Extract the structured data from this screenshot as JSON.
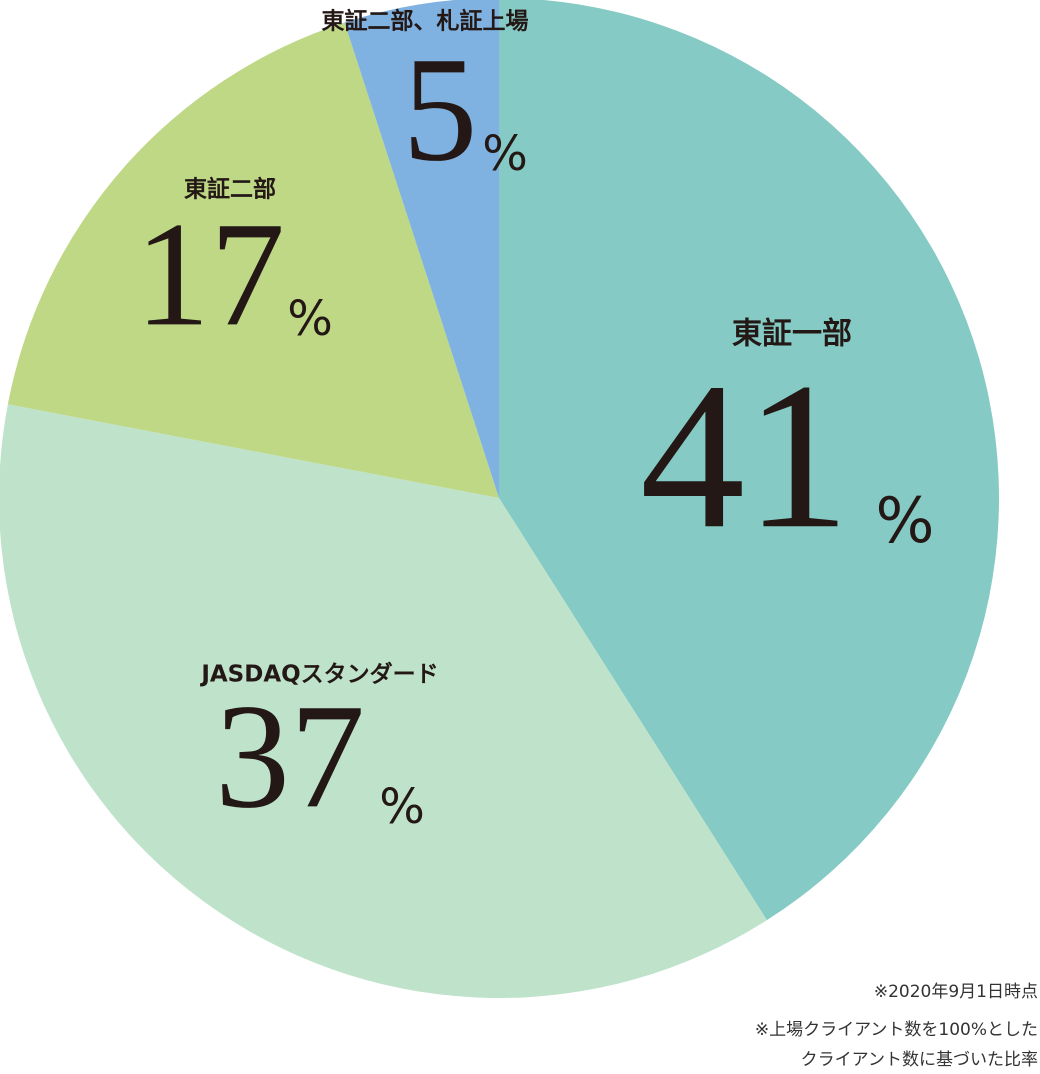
{
  "chart_data": {
    "type": "pie",
    "categories": [
      "東証一部",
      "JASDAQスタンダード",
      "東証二部",
      "東証二部、札証上場"
    ],
    "values": [
      41,
      37,
      17,
      5
    ],
    "colors": [
      "#85cac4",
      "#bfe2cb",
      "#bed886",
      "#7fb2e0"
    ],
    "unit": "%",
    "notes": [
      "※2020年9月1日時点",
      "※上場クライアント数を100%とした",
      "クライアント数に基づいた比率"
    ]
  }
}
